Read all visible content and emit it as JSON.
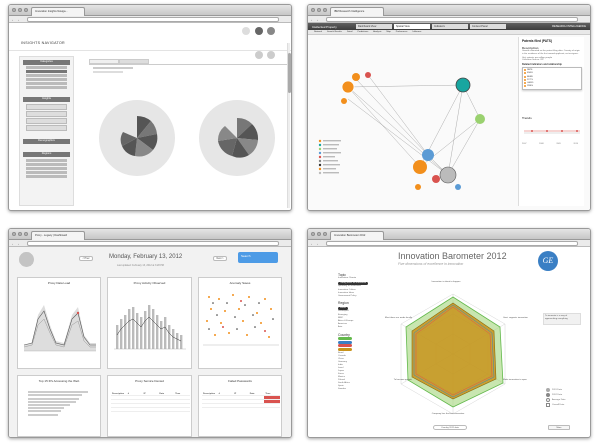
{
  "windows": {
    "w1": {
      "tab_title": "Innovation Insights Naviga..."
    },
    "w2": {
      "tab_title": "IBM Research Intelligence"
    },
    "w3": {
      "tab_title": "Proxy - Legacy | Dashboard"
    },
    "w4": {
      "tab_title": "Innovation Barometer 2012"
    }
  },
  "w1": {
    "brand": "INSIGHTS NAVIGATOR",
    "sidebar": [
      {
        "label": "Categories",
        "items": [
          "",
          "",
          "",
          "",
          "",
          "",
          ""
        ]
      },
      {
        "label": "Insights",
        "items": [
          "",
          "",
          "",
          "",
          ""
        ]
      },
      {
        "label": "Demographics",
        "items": []
      },
      {
        "label": "Regions",
        "items": [
          "",
          "",
          "",
          "",
          "",
          ""
        ]
      }
    ],
    "chart_titles": [
      "",
      ""
    ]
  },
  "w2": {
    "app_title": "Intellectual Property",
    "tabs": [
      "Dashboard View",
      "Spatial View",
      "Indicators",
      "Context Panel"
    ],
    "subtabs": [
      "Network",
      "Search Results",
      "Detail",
      "Predictions",
      "Analysis",
      "Map",
      "Preferences",
      "Influence"
    ],
    "user_label": "RESEARCH INTELLIGENCE",
    "side_title": "Patents filed (PATS)",
    "description_heading": "Description",
    "description": "Growth estimated on the patent filing data. Country of origin is the residence of the first named applicant, not assignee.",
    "unit_label": "Unit: patents per million people",
    "collection_label": "Collection Source: IPP",
    "related_heading": "Related indicators and relationship",
    "related_items": [
      "PATS",
      "RSFU",
      "BERD",
      "PCTS",
      "GERD",
      "PRES"
    ],
    "trend_heading": "Trends",
    "trend_years": [
      "2007",
      "2008",
      "2009",
      "2010"
    ],
    "legend": [
      "",
      "",
      "",
      "",
      "",
      "",
      "",
      "",
      ""
    ]
  },
  "w3": {
    "date_title": "Monday, February 13, 2012",
    "prev_label": "< Prev",
    "next_label": "Next >",
    "subtitle": "Last updated: February 13, 2012 at 3:28 PM",
    "search_label": "Search",
    "panels": [
      {
        "title": "Proxy Data Load"
      },
      {
        "title": "Proxy Activity Observed"
      },
      {
        "title": "Anomaly Saves"
      },
      {
        "title": "Top 15 IPs Accessing the Web"
      },
      {
        "title": "Proxy Service Denied"
      },
      {
        "title": "Failed Passwords"
      }
    ],
    "table_head": [
      "Description",
      "#",
      "IP",
      "Date",
      "Time"
    ]
  },
  "w4": {
    "title": "Innovation Barometer 2012",
    "subtitle": "Five dimensions of excellence in innovation",
    "logo_text": "GE",
    "filter_topic": "Topic",
    "filter_region": "Region",
    "filter_country": "Country",
    "topics": [
      "Innovation Climate",
      "Taking Risks for Innovation",
      "Spending on Innovation",
      "Innovation Culture",
      "Innovation Ideas",
      "Government Policy"
    ],
    "regions": [
      "World",
      "Developed",
      "Emerging",
      "BRIC",
      "Africa & Europe",
      "Americas",
      "Asia"
    ],
    "countries": [
      "",
      "",
      "",
      "",
      "Brazil",
      "Canada",
      "China",
      "Germany",
      "India",
      "Israel",
      "Japan",
      "Korea",
      "Mexico",
      "Poland",
      "South Africa",
      "Spain",
      "Sweden",
      "UAE",
      "UK",
      "US"
    ],
    "radar_axes": [
      "Innovation is about to happen",
      "Govt. supports innovation",
      "Make innovation to open",
      "Company has the best innovation",
      "To become partner",
      "Most ideas are made locally"
    ],
    "callout": "To innovate is a way of approaching everything",
    "legend": [
      "2011 Data",
      "2012 Data",
      "Average Data",
      "Overall Data"
    ],
    "year_toggle": "Overlay 2011 data",
    "more_button": "More"
  },
  "colors": {
    "orange": "#f28f1c",
    "teal": "#18a6a0",
    "green_light": "#9ad16f",
    "barometer_fill": "#c8931b",
    "barometer_green": "#63b94c",
    "ge_blue": "#3a7fc4",
    "search_blue": "#4d9be6"
  }
}
